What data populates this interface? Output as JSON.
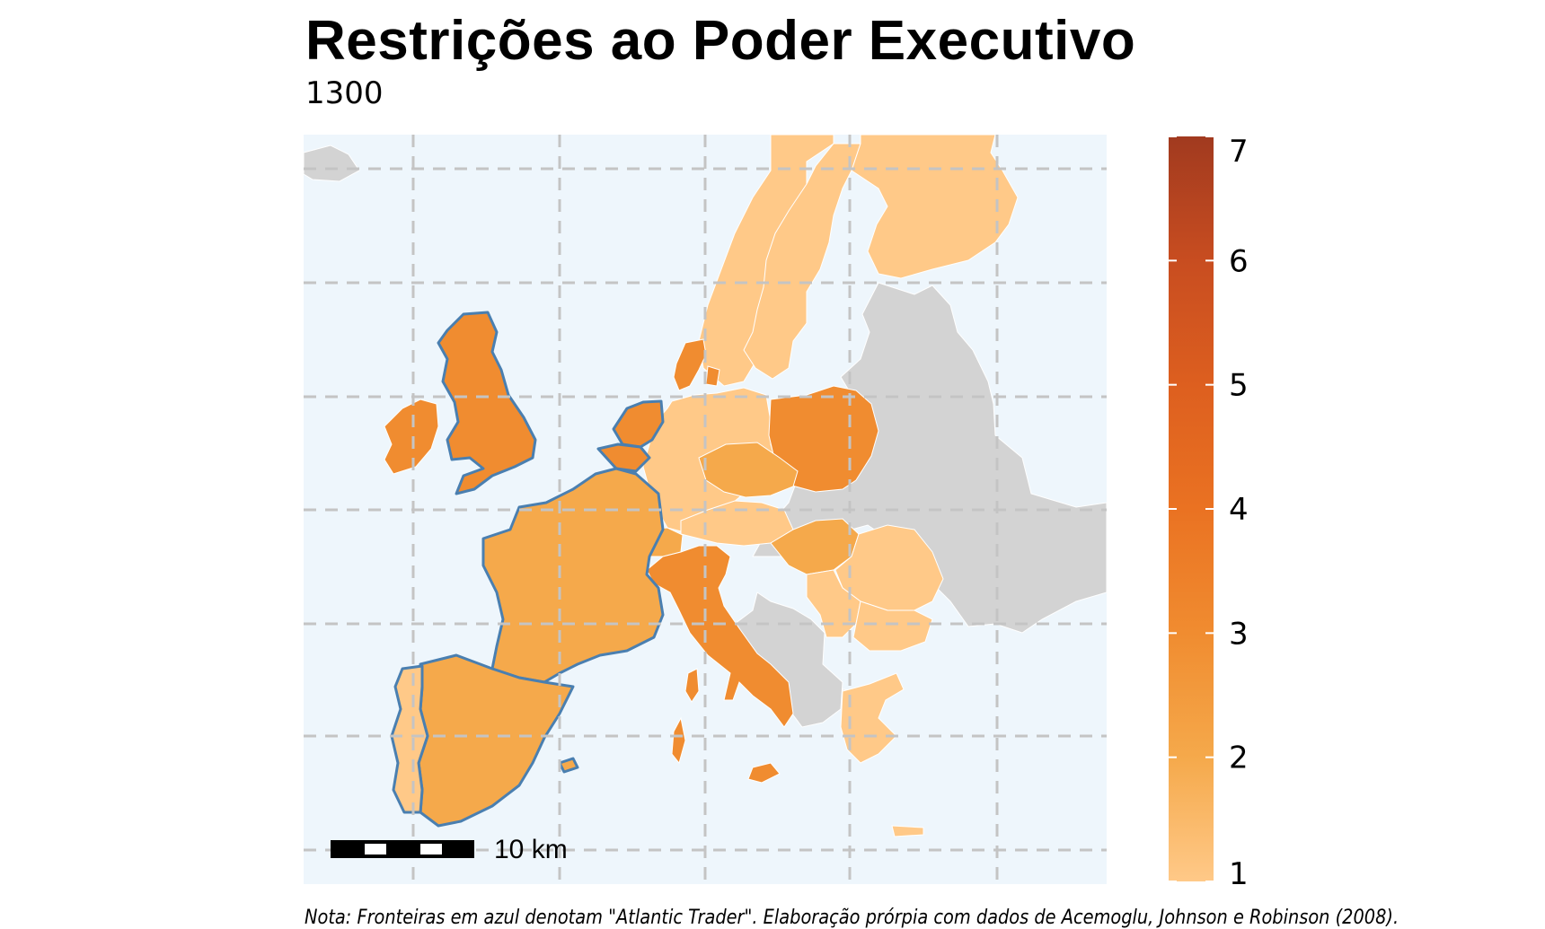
{
  "title": "Restrições ao Poder Executivo",
  "subtitle": "1300",
  "note": "Nota: Fronteiras em azul denotam \"Atlantic Trader\". Elaboração prórpia com dados de Acemoglu, Johnson e Robinson (2008).",
  "scale_bar": {
    "label": "10 km"
  },
  "colors": {
    "sea": "#eef6fc",
    "no_data": "#d3d3d3",
    "atlantic_trader_border": "#4a7fb0",
    "country_border": "#ffffff",
    "grid": "#c4c4c4"
  },
  "legend": {
    "min": 1,
    "max": 7,
    "ticks": [
      "1",
      "2",
      "3",
      "4",
      "5",
      "6",
      "7"
    ],
    "gradient": [
      "#ffc988",
      "#f5a94b",
      "#f08c30",
      "#ea7222",
      "#dd5f1f",
      "#c84d20",
      "#a13a1f"
    ]
  },
  "countries": [
    {
      "name": "Portugal",
      "value": 1.5,
      "atlantic_trader": true
    },
    {
      "name": "Spain",
      "value": 2,
      "atlantic_trader": true
    },
    {
      "name": "France",
      "value": 2,
      "atlantic_trader": true
    },
    {
      "name": "United Kingdom",
      "value": 3,
      "atlantic_trader": true
    },
    {
      "name": "Ireland",
      "value": 3,
      "atlantic_trader": false
    },
    {
      "name": "Netherlands",
      "value": 3,
      "atlantic_trader": true
    },
    {
      "name": "Belgium",
      "value": 3,
      "atlantic_trader": true
    },
    {
      "name": "Germany",
      "value": 1,
      "atlantic_trader": false
    },
    {
      "name": "Switzerland",
      "value": 2,
      "atlantic_trader": false
    },
    {
      "name": "Italy",
      "value": 3,
      "atlantic_trader": false
    },
    {
      "name": "Austria",
      "value": 1,
      "atlantic_trader": false
    },
    {
      "name": "Czechia",
      "value": 2,
      "atlantic_trader": false
    },
    {
      "name": "Poland",
      "value": 3,
      "atlantic_trader": false
    },
    {
      "name": "Hungary",
      "value": 2,
      "atlantic_trader": false
    },
    {
      "name": "Denmark",
      "value": 3,
      "atlantic_trader": false
    },
    {
      "name": "Sweden",
      "value": 1,
      "atlantic_trader": false
    },
    {
      "name": "Norway",
      "value": 1,
      "atlantic_trader": false
    },
    {
      "name": "Finland",
      "value": 1,
      "atlantic_trader": false
    },
    {
      "name": "Romania",
      "value": 1,
      "atlantic_trader": false
    },
    {
      "name": "Serbia",
      "value": 1,
      "atlantic_trader": false
    },
    {
      "name": "Bulgaria",
      "value": 1,
      "atlantic_trader": false
    },
    {
      "name": "Greece",
      "value": 1,
      "atlantic_trader": false
    }
  ]
}
